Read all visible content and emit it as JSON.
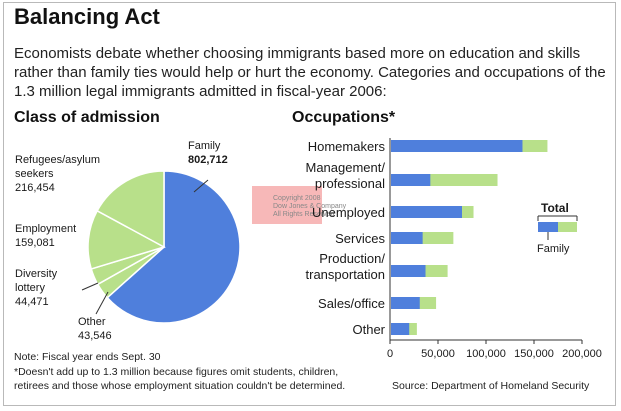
{
  "header": {
    "title": "Balancing Act",
    "intro": "Economists debate whether choosing immigrants based more on education and skills rather than family ties would help or hurt the economy. Categories and occupations of the 1.3 million legal immigrants admitted in fiscal-year 2006:"
  },
  "pie_section_title": "Class of admission",
  "bar_section_title": "Occupations*",
  "colors": {
    "blue": "#4f7fdc",
    "green": "#b8e08a",
    "watermark": "#f4a0a0"
  },
  "watermark": [
    "Copyright 2008",
    "Dow Jones & Company",
    "All Rights Reserved"
  ],
  "chart_data": [
    {
      "type": "pie",
      "title": "Class of admission",
      "slices": [
        {
          "label": "Family",
          "value": 802712,
          "value_text": "802,712",
          "color": "#4f7fdc"
        },
        {
          "label": "Other",
          "value": 43546,
          "value_text": "43,546",
          "color": "#b8e08a"
        },
        {
          "label": "Diversity lottery",
          "value": 44471,
          "value_text": "44,471",
          "color": "#b8e08a"
        },
        {
          "label": "Employment",
          "value": 159081,
          "value_text": "159,081",
          "color": "#b8e08a"
        },
        {
          "label": "Refugees/asylum seekers",
          "value": 216454,
          "value_text": "216,454",
          "color": "#b8e08a"
        }
      ]
    },
    {
      "type": "bar",
      "orientation": "horizontal",
      "stacked": true,
      "title": "Occupations*",
      "categories": [
        "Homemakers",
        "Management/ professional",
        "Unemployed",
        "Services",
        "Production/ transportation",
        "Sales/office",
        "Other"
      ],
      "series": [
        {
          "name": "Family",
          "color": "#4f7fdc",
          "values": [
            138000,
            42000,
            75000,
            34000,
            37000,
            31000,
            20000
          ]
        },
        {
          "name": "Total",
          "color": "#b8e08a",
          "values": [
            164000,
            112000,
            87000,
            66000,
            60000,
            48000,
            28000
          ]
        }
      ],
      "xlim": [
        0,
        200000
      ],
      "xticks": [
        0,
        50000,
        100000,
        150000,
        200000
      ],
      "xtick_labels": [
        "0",
        "50,000",
        "100,000",
        "150,000",
        "200,000"
      ],
      "legend": {
        "position": "right",
        "labels": [
          "Total",
          "Family"
        ]
      }
    }
  ],
  "notes": {
    "note1": "Note: Fiscal year ends Sept. 30",
    "note2": "*Doesn't add up to 1.3 million because figures omit students, children,",
    "note3": "retirees and those whose employment situation couldn't be determined.",
    "source": "Source: Department of Homeland Security"
  }
}
